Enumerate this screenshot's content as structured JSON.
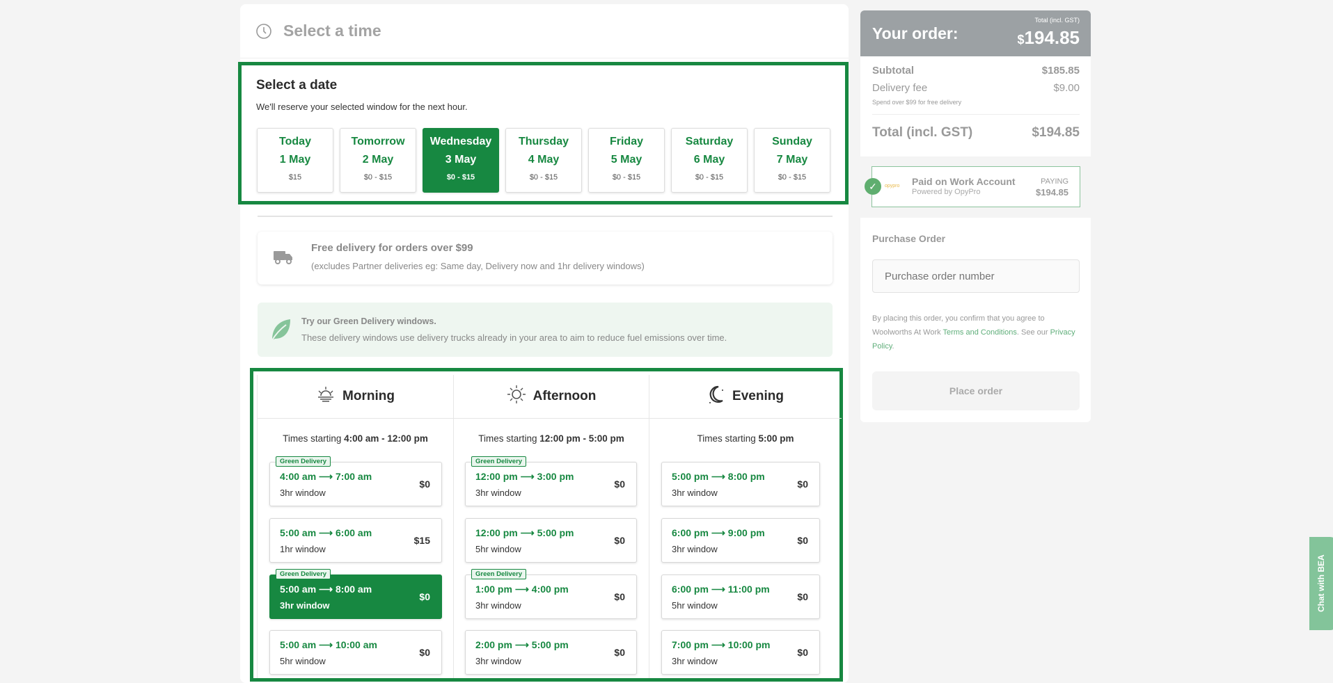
{
  "colors": {
    "brand_green": "#178841",
    "header_gray": "#9ca1a4"
  },
  "time_section": {
    "title": "Select a time",
    "icon": "clock-icon"
  },
  "date_section": {
    "title": "Select a date",
    "subtitle": "We'll reserve your selected window for the next hour.",
    "dates": [
      {
        "day": "Today",
        "date": "1 May",
        "price": "$15",
        "selected": false
      },
      {
        "day": "Tomorrow",
        "date": "2 May",
        "price": "$0 - $15",
        "selected": false
      },
      {
        "day": "Wednesday",
        "date": "3 May",
        "price": "$0 - $15",
        "selected": true
      },
      {
        "day": "Thursday",
        "date": "4 May",
        "price": "$0 - $15",
        "selected": false
      },
      {
        "day": "Friday",
        "date": "5 May",
        "price": "$0 - $15",
        "selected": false
      },
      {
        "day": "Saturday",
        "date": "6 May",
        "price": "$0 - $15",
        "selected": false
      },
      {
        "day": "Sunday",
        "date": "7 May",
        "price": "$0 - $15",
        "selected": false
      }
    ]
  },
  "free_delivery": {
    "title": "Free delivery for orders over $99",
    "note": "(excludes Partner deliveries eg: Same day, Delivery now and 1hr delivery windows)",
    "icon": "truck-icon"
  },
  "green_delivery": {
    "title": "Try our Green Delivery windows.",
    "note": "These delivery windows use delivery trucks already in your area to aim to reduce fuel emissions over time.",
    "icon": "leaf-icon"
  },
  "badge_label": "Green Delivery",
  "columns": [
    {
      "name": "Morning",
      "icon": "sunrise-icon",
      "prefix": "Times starting ",
      "range": "4:00 am - 12:00 pm",
      "slots": [
        {
          "from": "4:00 am",
          "to": "7:00 am",
          "window": "3hr window",
          "price": "$0",
          "green": true,
          "selected": false
        },
        {
          "from": "5:00 am",
          "to": "6:00 am",
          "window": "1hr window",
          "price": "$15",
          "green": false,
          "selected": false
        },
        {
          "from": "5:00 am",
          "to": "8:00 am",
          "window": "3hr window",
          "price": "$0",
          "green": true,
          "selected": true
        },
        {
          "from": "5:00 am",
          "to": "10:00 am",
          "window": "5hr window",
          "price": "$0",
          "green": false,
          "selected": false
        }
      ]
    },
    {
      "name": "Afternoon",
      "icon": "sun-icon",
      "prefix": "Times starting ",
      "range": "12:00 pm - 5:00 pm",
      "slots": [
        {
          "from": "12:00 pm",
          "to": "3:00 pm",
          "window": "3hr window",
          "price": "$0",
          "green": true,
          "selected": false
        },
        {
          "from": "12:00 pm",
          "to": "5:00 pm",
          "window": "5hr window",
          "price": "$0",
          "green": false,
          "selected": false
        },
        {
          "from": "1:00 pm",
          "to": "4:00 pm",
          "window": "3hr window",
          "price": "$0",
          "green": true,
          "selected": false
        },
        {
          "from": "2:00 pm",
          "to": "5:00 pm",
          "window": "3hr window",
          "price": "$0",
          "green": false,
          "selected": false
        }
      ]
    },
    {
      "name": "Evening",
      "icon": "moon-icon",
      "prefix": "Times starting ",
      "range": "5:00 pm",
      "slots": [
        {
          "from": "5:00 pm",
          "to": "8:00 pm",
          "window": "3hr window",
          "price": "$0",
          "green": false,
          "selected": false
        },
        {
          "from": "6:00 pm",
          "to": "9:00 pm",
          "window": "3hr window",
          "price": "$0",
          "green": false,
          "selected": false
        },
        {
          "from": "6:00 pm",
          "to": "11:00 pm",
          "window": "5hr window",
          "price": "$0",
          "green": false,
          "selected": false
        },
        {
          "from": "7:00 pm",
          "to": "10:00 pm",
          "window": "3hr window",
          "price": "$0",
          "green": false,
          "selected": false
        }
      ]
    }
  ],
  "order": {
    "title": "Your order:",
    "total_label_small": "Total (incl. GST)",
    "currency": "$",
    "total_big": "194.85",
    "subtotal_label": "Subtotal",
    "subtotal": "$185.85",
    "fee_label": "Delivery fee",
    "fee": "$9.00",
    "fee_note": "Spend over $99 for free delivery",
    "total_label": "Total (incl. GST)",
    "total": "$194.85",
    "payment": {
      "logo": "opypro",
      "title": "Paid on Work Account",
      "subtitle": "Powered by OpyPro",
      "paying_label": "PAYING",
      "paying_amount": "$194.85"
    },
    "po_label": "Purchase Order",
    "po_placeholder": "Purchase order number",
    "terms_pre": "By placing this order, you confirm that you agree to Woolworths At Work ",
    "terms_link": "Terms and Conditions",
    "terms_mid": ". See our ",
    "privacy_link": "Privacy Policy",
    "terms_end": ".",
    "place_order": "Place order"
  },
  "chat": {
    "label": "Chat with BEA"
  }
}
